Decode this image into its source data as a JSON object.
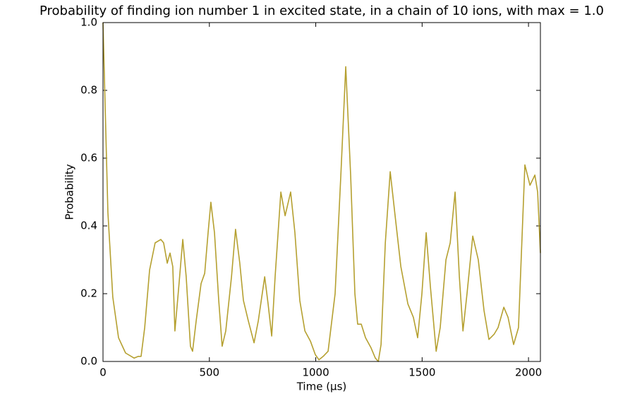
{
  "chart_data": {
    "type": "line",
    "title": "Probability of finding ion number 1 in excited state, in a chain of 10 ions, with max = 1.0",
    "xlabel": "Time (μs)",
    "ylabel": "Probability",
    "x": [
      0,
      23,
      46,
      73,
      106,
      146,
      166,
      179,
      196,
      219,
      245,
      272,
      285,
      302,
      315,
      328,
      338,
      352,
      375,
      391,
      411,
      421,
      438,
      461,
      478,
      494,
      507,
      524,
      544,
      560,
      577,
      604,
      623,
      643,
      660,
      683,
      710,
      730,
      760,
      776,
      793,
      809,
      836,
      856,
      882,
      902,
      925,
      949,
      975,
      998,
      1015,
      1035,
      1058,
      1091,
      1118,
      1141,
      1164,
      1184,
      1197,
      1214,
      1234,
      1260,
      1280,
      1294,
      1307,
      1327,
      1350,
      1373,
      1400,
      1433,
      1459,
      1479,
      1499,
      1519,
      1539,
      1566,
      1585,
      1612,
      1632,
      1655,
      1675,
      1692,
      1711,
      1738,
      1764,
      1791,
      1814,
      1838,
      1857,
      1884,
      1904,
      1930,
      1953,
      1983,
      2007,
      2030,
      2043,
      2056
    ],
    "series": [
      {
        "color": "#b5a030",
        "values": [
          1.0,
          0.44,
          0.19,
          0.07,
          0.025,
          0.01,
          0.015,
          0.015,
          0.1,
          0.27,
          0.35,
          0.36,
          0.35,
          0.29,
          0.32,
          0.28,
          0.09,
          0.19,
          0.36,
          0.25,
          0.045,
          0.03,
          0.12,
          0.23,
          0.26,
          0.38,
          0.47,
          0.38,
          0.18,
          0.045,
          0.09,
          0.25,
          0.39,
          0.29,
          0.18,
          0.12,
          0.055,
          0.12,
          0.25,
          0.17,
          0.075,
          0.25,
          0.5,
          0.43,
          0.5,
          0.38,
          0.18,
          0.09,
          0.06,
          0.02,
          0.005,
          0.015,
          0.03,
          0.2,
          0.55,
          0.87,
          0.55,
          0.2,
          0.11,
          0.11,
          0.07,
          0.04,
          0.01,
          0.0,
          0.05,
          0.35,
          0.56,
          0.43,
          0.28,
          0.17,
          0.13,
          0.07,
          0.2,
          0.38,
          0.22,
          0.03,
          0.1,
          0.3,
          0.35,
          0.5,
          0.25,
          0.09,
          0.2,
          0.37,
          0.3,
          0.15,
          0.065,
          0.08,
          0.1,
          0.16,
          0.13,
          0.05,
          0.1,
          0.58,
          0.52,
          0.55,
          0.5,
          0.32
        ]
      }
    ],
    "xlim": [
      0,
      2056
    ],
    "ylim": [
      0,
      1
    ],
    "xticks": [
      0,
      500,
      1000,
      1500,
      2000
    ],
    "yticks": [
      {
        "value": 0,
        "label": "0.0"
      },
      0.2,
      0.4,
      0.6,
      0.8,
      {
        "value": 1,
        "label": "1.0"
      }
    ]
  }
}
